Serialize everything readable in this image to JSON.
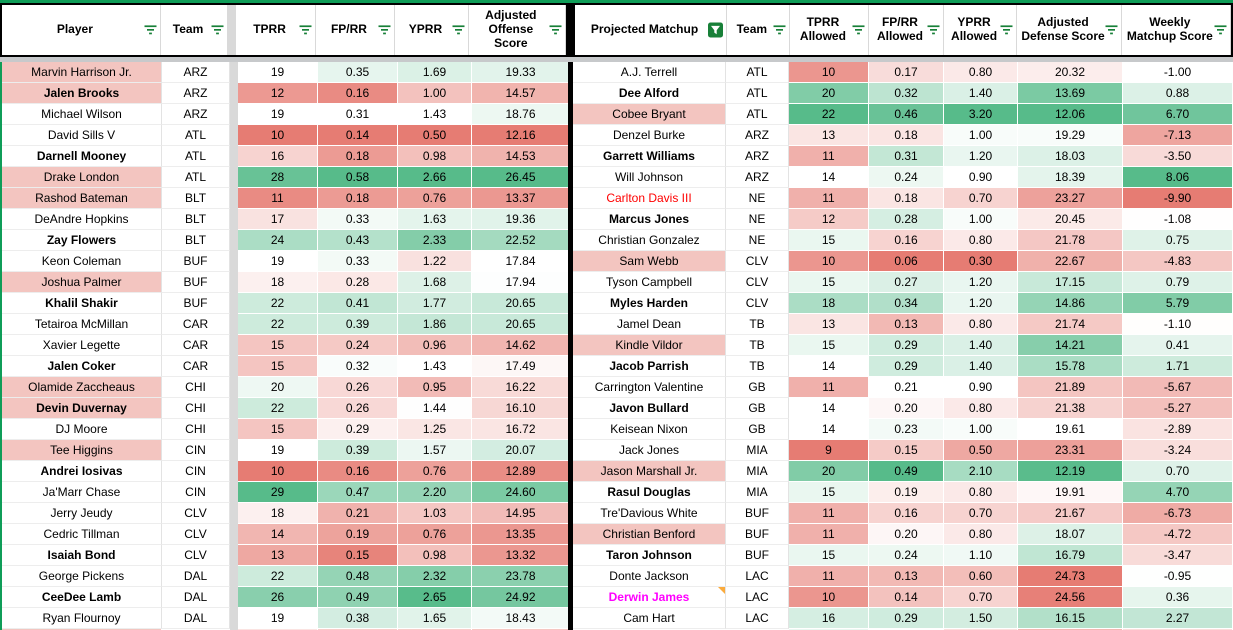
{
  "colors": {
    "gradient_red": "#e67c73",
    "gradient_mid": "#ffffff",
    "gradient_green": "#57bb8a",
    "name_highlight": "#f3c5c0",
    "filter_icon_green": "#188038",
    "sheet_accent_green": "#0f9d58",
    "column_divider_gray": "#d9d9d9",
    "frozen_divider_gray": "#c7c9cb",
    "table_border_black": "#000000",
    "alert_red_text": "#ff0000",
    "alert_magenta_text": "#ff00ff",
    "note_indicator_orange": "#fbab3c"
  },
  "left_table": {
    "columns": [
      {
        "id": "player",
        "label": "Player",
        "kind": "name",
        "filter": "inactive"
      },
      {
        "id": "team",
        "label": "Team",
        "kind": "team",
        "filter": "inactive"
      },
      {
        "id": "tprr",
        "label": "TPRR",
        "kind": "value",
        "direction": "high",
        "filter": "inactive"
      },
      {
        "id": "fprr",
        "label": "FP/RR",
        "kind": "value",
        "direction": "high",
        "filter": "inactive"
      },
      {
        "id": "yprr",
        "label": "YPRR",
        "kind": "value",
        "direction": "high",
        "filter": "inactive"
      },
      {
        "id": "adj_off",
        "label": "Adjusted Offense Score",
        "kind": "value",
        "direction": "high",
        "filter": "inactive"
      }
    ],
    "rows": [
      {
        "player": "Marvin Harrison Jr.",
        "team": "ARZ",
        "bold": false,
        "highlight": true,
        "values": [
          "19",
          "0.35",
          "1.69",
          "19.33"
        ]
      },
      {
        "player": "Jalen Brooks",
        "team": "ARZ",
        "bold": true,
        "highlight": true,
        "values": [
          "12",
          "0.16",
          "1.00",
          "14.57"
        ]
      },
      {
        "player": "Michael Wilson",
        "team": "ARZ",
        "bold": false,
        "highlight": false,
        "values": [
          "19",
          "0.31",
          "1.43",
          "18.76"
        ]
      },
      {
        "player": "David Sills V",
        "team": "ATL",
        "bold": false,
        "highlight": false,
        "values": [
          "10",
          "0.14",
          "0.50",
          "12.16"
        ]
      },
      {
        "player": "Darnell Mooney",
        "team": "ATL",
        "bold": true,
        "highlight": false,
        "values": [
          "16",
          "0.18",
          "0.98",
          "14.53"
        ]
      },
      {
        "player": "Drake London",
        "team": "ATL",
        "bold": false,
        "highlight": true,
        "values": [
          "28",
          "0.58",
          "2.66",
          "26.45"
        ]
      },
      {
        "player": "Rashod Bateman",
        "team": "BLT",
        "bold": false,
        "highlight": true,
        "values": [
          "11",
          "0.18",
          "0.76",
          "13.37"
        ]
      },
      {
        "player": "DeAndre Hopkins",
        "team": "BLT",
        "bold": false,
        "highlight": false,
        "values": [
          "17",
          "0.33",
          "1.63",
          "19.36"
        ]
      },
      {
        "player": "Zay Flowers",
        "team": "BLT",
        "bold": true,
        "highlight": false,
        "values": [
          "24",
          "0.43",
          "2.33",
          "22.52"
        ]
      },
      {
        "player": "Keon Coleman",
        "team": "BUF",
        "bold": false,
        "highlight": false,
        "values": [
          "19",
          "0.33",
          "1.22",
          "17.84"
        ]
      },
      {
        "player": "Joshua Palmer",
        "team": "BUF",
        "bold": false,
        "highlight": true,
        "values": [
          "18",
          "0.28",
          "1.68",
          "17.94"
        ]
      },
      {
        "player": "Khalil Shakir",
        "team": "BUF",
        "bold": true,
        "highlight": false,
        "values": [
          "22",
          "0.41",
          "1.77",
          "20.65"
        ]
      },
      {
        "player": "Tetairoa McMillan",
        "team": "CAR",
        "bold": false,
        "highlight": false,
        "values": [
          "22",
          "0.39",
          "1.86",
          "20.65"
        ]
      },
      {
        "player": "Xavier Legette",
        "team": "CAR",
        "bold": false,
        "highlight": false,
        "values": [
          "15",
          "0.24",
          "0.96",
          "14.62"
        ]
      },
      {
        "player": "Jalen Coker",
        "team": "CAR",
        "bold": true,
        "highlight": false,
        "values": [
          "15",
          "0.32",
          "1.43",
          "17.49"
        ]
      },
      {
        "player": "Olamide Zaccheaus",
        "team": "CHI",
        "bold": false,
        "highlight": true,
        "values": [
          "20",
          "0.26",
          "0.95",
          "16.22"
        ]
      },
      {
        "player": "Devin Duvernay",
        "team": "CHI",
        "bold": true,
        "highlight": true,
        "values": [
          "22",
          "0.26",
          "1.44",
          "16.10"
        ]
      },
      {
        "player": "DJ Moore",
        "team": "CHI",
        "bold": false,
        "highlight": false,
        "values": [
          "15",
          "0.29",
          "1.25",
          "16.72"
        ]
      },
      {
        "player": "Tee Higgins",
        "team": "CIN",
        "bold": false,
        "highlight": true,
        "values": [
          "19",
          "0.39",
          "1.57",
          "20.07"
        ]
      },
      {
        "player": "Andrei Iosivas",
        "team": "CIN",
        "bold": true,
        "highlight": false,
        "values": [
          "10",
          "0.16",
          "0.76",
          "12.89"
        ]
      },
      {
        "player": "Ja'Marr Chase",
        "team": "CIN",
        "bold": false,
        "highlight": false,
        "values": [
          "29",
          "0.47",
          "2.20",
          "24.60"
        ]
      },
      {
        "player": "Jerry Jeudy",
        "team": "CLV",
        "bold": false,
        "highlight": false,
        "values": [
          "18",
          "0.21",
          "1.03",
          "14.95"
        ]
      },
      {
        "player": "Cedric Tillman",
        "team": "CLV",
        "bold": false,
        "highlight": false,
        "values": [
          "14",
          "0.19",
          "0.76",
          "13.35"
        ]
      },
      {
        "player": "Isaiah Bond",
        "team": "CLV",
        "bold": true,
        "highlight": false,
        "values": [
          "13",
          "0.15",
          "0.98",
          "13.32"
        ]
      },
      {
        "player": "George Pickens",
        "team": "DAL",
        "bold": false,
        "highlight": false,
        "values": [
          "22",
          "0.48",
          "2.32",
          "23.78"
        ]
      },
      {
        "player": "CeeDee Lamb",
        "team": "DAL",
        "bold": true,
        "highlight": false,
        "values": [
          "26",
          "0.49",
          "2.65",
          "24.92"
        ]
      },
      {
        "player": "Ryan Flournoy",
        "team": "DAL",
        "bold": false,
        "highlight": false,
        "values": [
          "19",
          "0.38",
          "1.65",
          "18.43"
        ]
      }
    ]
  },
  "right_table": {
    "columns": [
      {
        "id": "player",
        "label": "Projected Matchup",
        "kind": "name",
        "filter": "active"
      },
      {
        "id": "team",
        "label": "Team",
        "kind": "team",
        "filter": "inactive"
      },
      {
        "id": "tprr_allowed",
        "label": "TPRR Allowed",
        "kind": "value",
        "direction": "high",
        "filter": "inactive"
      },
      {
        "id": "fprr_allowed",
        "label": "FP/RR Allowed",
        "kind": "value",
        "direction": "high",
        "filter": "inactive"
      },
      {
        "id": "yprr_allowed",
        "label": "YPRR Allowed",
        "kind": "value",
        "direction": "high",
        "filter": "inactive"
      },
      {
        "id": "adj_def",
        "label": "Adjusted Defense Score",
        "kind": "value",
        "direction": "low",
        "filter": "inactive"
      },
      {
        "id": "weekly",
        "label": "Weekly Matchup Score",
        "kind": "value",
        "direction": "high",
        "filter": "inactive"
      }
    ],
    "rows": [
      {
        "player": "A.J. Terrell",
        "team": "ATL",
        "bold": false,
        "highlight": false,
        "values": [
          "10",
          "0.17",
          "0.80",
          "20.32",
          "-1.00"
        ]
      },
      {
        "player": "Dee Alford",
        "team": "ATL",
        "bold": true,
        "highlight": false,
        "values": [
          "20",
          "0.32",
          "1.40",
          "13.69",
          "0.88"
        ]
      },
      {
        "player": "Cobee Bryant",
        "team": "ATL",
        "bold": false,
        "highlight": true,
        "values": [
          "22",
          "0.46",
          "3.20",
          "12.06",
          "6.70"
        ]
      },
      {
        "player": "Denzel Burke",
        "team": "ARZ",
        "bold": false,
        "highlight": false,
        "values": [
          "13",
          "0.18",
          "1.00",
          "19.29",
          "-7.13"
        ]
      },
      {
        "player": "Garrett Williams",
        "team": "ARZ",
        "bold": true,
        "highlight": false,
        "values": [
          "11",
          "0.31",
          "1.20",
          "18.03",
          "-3.50"
        ]
      },
      {
        "player": "Will Johnson",
        "team": "ARZ",
        "bold": false,
        "highlight": false,
        "values": [
          "14",
          "0.24",
          "0.90",
          "18.39",
          "8.06"
        ]
      },
      {
        "player": "Carlton Davis III",
        "team": "NE",
        "bold": false,
        "highlight": false,
        "name_color": "#ff0000",
        "values": [
          "11",
          "0.18",
          "0.70",
          "23.27",
          "-9.90"
        ]
      },
      {
        "player": "Marcus Jones",
        "team": "NE",
        "bold": true,
        "highlight": false,
        "values": [
          "12",
          "0.28",
          "1.00",
          "20.45",
          "-1.08"
        ]
      },
      {
        "player": "Christian Gonzalez",
        "team": "NE",
        "bold": false,
        "highlight": false,
        "values": [
          "15",
          "0.16",
          "0.80",
          "21.78",
          "0.75"
        ]
      },
      {
        "player": "Sam Webb",
        "team": "CLV",
        "bold": false,
        "highlight": true,
        "values": [
          "10",
          "0.06",
          "0.30",
          "22.67",
          "-4.83"
        ]
      },
      {
        "player": "Tyson Campbell",
        "team": "CLV",
        "bold": false,
        "highlight": false,
        "values": [
          "15",
          "0.27",
          "1.20",
          "17.15",
          "0.79"
        ]
      },
      {
        "player": "Myles Harden",
        "team": "CLV",
        "bold": true,
        "highlight": false,
        "values": [
          "18",
          "0.34",
          "1.20",
          "14.86",
          "5.79"
        ]
      },
      {
        "player": "Jamel Dean",
        "team": "TB",
        "bold": false,
        "highlight": false,
        "values": [
          "13",
          "0.13",
          "0.80",
          "21.74",
          "-1.10"
        ]
      },
      {
        "player": "Kindle Vildor",
        "team": "TB",
        "bold": false,
        "highlight": true,
        "values": [
          "15",
          "0.29",
          "1.40",
          "14.21",
          "0.41"
        ]
      },
      {
        "player": "Jacob Parrish",
        "team": "TB",
        "bold": true,
        "highlight": false,
        "values": [
          "14",
          "0.29",
          "1.40",
          "15.78",
          "1.71"
        ]
      },
      {
        "player": "Carrington Valentine",
        "team": "GB",
        "bold": false,
        "highlight": false,
        "values": [
          "11",
          "0.21",
          "0.90",
          "21.89",
          "-5.67"
        ]
      },
      {
        "player": "Javon Bullard",
        "team": "GB",
        "bold": true,
        "highlight": false,
        "values": [
          "14",
          "0.20",
          "0.80",
          "21.38",
          "-5.27"
        ]
      },
      {
        "player": "Keisean Nixon",
        "team": "GB",
        "bold": false,
        "highlight": false,
        "values": [
          "14",
          "0.23",
          "1.00",
          "19.61",
          "-2.89"
        ]
      },
      {
        "player": "Jack Jones",
        "team": "MIA",
        "bold": false,
        "highlight": false,
        "values": [
          "9",
          "0.15",
          "0.50",
          "23.31",
          "-3.24"
        ]
      },
      {
        "player": "Jason Marshall Jr.",
        "team": "MIA",
        "bold": false,
        "highlight": true,
        "values": [
          "20",
          "0.49",
          "2.10",
          "12.19",
          "0.70"
        ]
      },
      {
        "player": "Rasul Douglas",
        "team": "MIA",
        "bold": true,
        "highlight": false,
        "values": [
          "15",
          "0.19",
          "0.80",
          "19.91",
          "4.70"
        ]
      },
      {
        "player": "Tre'Davious White",
        "team": "BUF",
        "bold": false,
        "highlight": false,
        "values": [
          "11",
          "0.16",
          "0.70",
          "21.67",
          "-6.73"
        ]
      },
      {
        "player": "Christian Benford",
        "team": "BUF",
        "bold": false,
        "highlight": true,
        "values": [
          "11",
          "0.20",
          "0.80",
          "18.07",
          "-4.72"
        ]
      },
      {
        "player": "Taron Johnson",
        "team": "BUF",
        "bold": true,
        "highlight": false,
        "values": [
          "15",
          "0.24",
          "1.10",
          "16.79",
          "-3.47"
        ]
      },
      {
        "player": "Donte Jackson",
        "team": "LAC",
        "bold": false,
        "highlight": false,
        "values": [
          "11",
          "0.13",
          "0.60",
          "24.73",
          "-0.95"
        ]
      },
      {
        "player": "Derwin James",
        "team": "LAC",
        "bold": true,
        "highlight": false,
        "name_color": "#ff00ff",
        "note": true,
        "values": [
          "10",
          "0.14",
          "0.70",
          "24.56",
          "0.36"
        ]
      },
      {
        "player": "Cam Hart",
        "team": "LAC",
        "bold": false,
        "highlight": false,
        "values": [
          "16",
          "0.29",
          "1.50",
          "16.15",
          "2.27"
        ]
      }
    ]
  },
  "partial_bottom_row": {
    "left": [
      "#f3c5c0",
      "#ffffff",
      "#fbe3e1",
      "#f7cdc9",
      "#f7cdc9",
      "#f5c7c2"
    ],
    "right": [
      "#ffffff",
      "#ffffff",
      "#eaf7f1",
      "#ffffff",
      "#fbe0dd",
      "#f2b8b2",
      "#fadedb"
    ]
  }
}
